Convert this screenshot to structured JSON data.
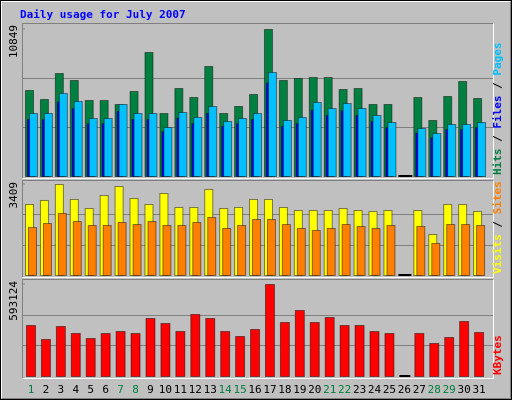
{
  "chart_data": [
    {
      "type": "bar",
      "title": "Daily usage for July 2007",
      "series": [
        {
          "name": "Hits",
          "color": "#008040",
          "values": [
            6347,
            5683,
            7601,
            7085,
            5609,
            5609,
            5314,
            6273,
            9151,
            4649,
            6494,
            5830,
            8118,
            4649,
            5166,
            6052,
            10849,
            7085,
            7232,
            7306,
            7306,
            6421,
            6494,
            5314,
            5314,
            0,
            5830,
            4133,
            5904,
            7011,
            5756
          ]
        },
        {
          "name": "Files",
          "color": "#0000ff",
          "values": [
            4200,
            4200,
            5500,
            5000,
            3900,
            3900,
            4800,
            4200,
            4200,
            3300,
            4300,
            3900,
            4650,
            3700,
            3900,
            4200,
            6900,
            3700,
            3900,
            4900,
            4500,
            4850,
            4500,
            4050,
            3600,
            0,
            3200,
            2850,
            3450,
            3450,
            3600
          ]
        },
        {
          "name": "Pages",
          "color": "#00c0ff",
          "values": [
            4649,
            4649,
            6125,
            5535,
            4280,
            4280,
            5314,
            4649,
            4649,
            3616,
            4723,
            4354,
            5166,
            4059,
            4280,
            4649,
            7675,
            4133,
            4354,
            5461,
            5018,
            5387,
            5018,
            4502,
            3985,
            0,
            3542,
            3173,
            3838,
            3838,
            3985
          ]
        }
      ],
      "ylim": [
        0,
        10849
      ],
      "yticks": [
        {
          "value": 10849,
          "label": "10849"
        }
      ],
      "gridlines": [
        3616,
        7233
      ]
    },
    {
      "type": "bar",
      "series": [
        {
          "name": "Visits",
          "color": "#ffff00",
          "values": [
            2660,
            2810,
            3409,
            2847,
            2510,
            2997,
            3334,
            2884,
            2660,
            3072,
            2547,
            2547,
            3222,
            2510,
            2547,
            2847,
            2847,
            2547,
            2435,
            2435,
            2435,
            2510,
            2435,
            2397,
            2435,
            0,
            2435,
            1536,
            2660,
            2660,
            2397
          ]
        },
        {
          "name": "Sites",
          "color": "#ff8000",
          "values": [
            1798,
            1948,
            2323,
            2023,
            1873,
            1873,
            1985,
            1910,
            2023,
            1873,
            1873,
            1985,
            2173,
            1761,
            1873,
            2098,
            2098,
            1910,
            1761,
            1686,
            1761,
            1910,
            1836,
            1761,
            1873,
            0,
            1836,
            1199,
            1910,
            1910,
            1873
          ]
        }
      ],
      "ylim": [
        0,
        3409
      ],
      "yticks": [
        {
          "value": 3409,
          "label": "3409"
        }
      ],
      "gridlines": [
        1136,
        2273
      ]
    },
    {
      "type": "bar",
      "categories": [
        "1",
        "2",
        "3",
        "4",
        "5",
        "6",
        "7",
        "8",
        "9",
        "10",
        "11",
        "12",
        "13",
        "14",
        "15",
        "16",
        "17",
        "18",
        "19",
        "20",
        "21",
        "22",
        "23",
        "24",
        "25",
        "26",
        "27",
        "28",
        "29",
        "30",
        "31"
      ],
      "weekend_indices": [
        0,
        6,
        7,
        13,
        14,
        20,
        21,
        27,
        28
      ],
      "weekend_color": "#008040",
      "series": [
        {
          "name": "KBytes",
          "color": "#ff0000",
          "values": [
            328797,
            238539,
            322350,
            277221,
            244986,
            277221,
            290115,
            277221,
            373926,
            341691,
            290115,
            399714,
            373926,
            290115,
            257880,
            303009,
            593124,
            348138,
            425502,
            348138,
            380373,
            328797,
            328797,
            290115,
            277221,
            0,
            277221,
            212751,
            251433,
            354585,
            283668
          ]
        }
      ],
      "ylim": [
        0,
        593124
      ],
      "yticks": [
        {
          "value": 593124,
          "label": "593124"
        }
      ],
      "gridlines": [
        197708,
        395416
      ]
    }
  ]
}
